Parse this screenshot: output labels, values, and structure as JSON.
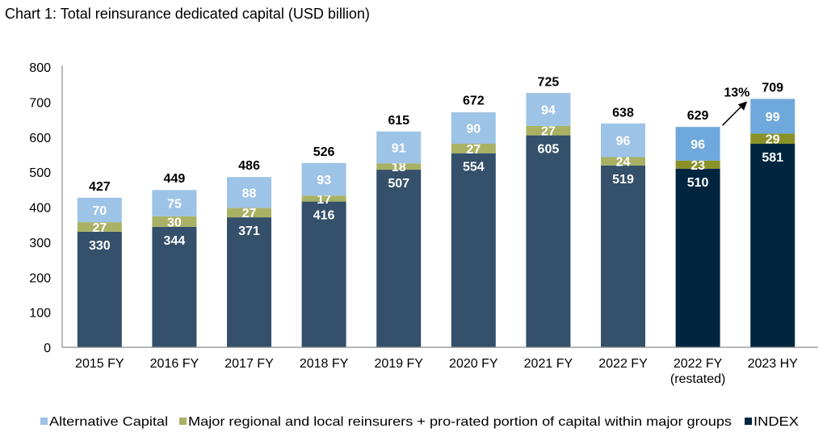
{
  "chart_data": {
    "type": "bar",
    "stacked": true,
    "title": "Chart 1: Total reinsurance dedicated capital (USD billion)",
    "categories": [
      "2015 FY",
      "2016 FY",
      "2017 FY",
      "2018 FY",
      "2019 FY",
      "2020 FY",
      "2021 FY",
      "2022 FY",
      "2022 FY\n(restated)",
      "2023 HY"
    ],
    "category_lines": [
      [
        "2015 FY"
      ],
      [
        "2016 FY"
      ],
      [
        "2017 FY"
      ],
      [
        "2018 FY"
      ],
      [
        "2019 FY"
      ],
      [
        "2020 FY"
      ],
      [
        "2021 FY"
      ],
      [
        "2022 FY"
      ],
      [
        "2022 FY",
        "(restated)"
      ],
      [
        "2023 HY"
      ]
    ],
    "series": [
      {
        "name": "INDEX",
        "values": [
          330,
          344,
          371,
          416,
          507,
          554,
          605,
          519,
          510,
          581
        ],
        "color": "#34506a",
        "highlight_color": "#00263f"
      },
      {
        "name": "Major regional and local reinsurers + pro-rated portion of capital within major groups",
        "values": [
          27,
          30,
          27,
          17,
          18,
          27,
          27,
          24,
          23,
          29
        ],
        "color": "#a9b264",
        "highlight_color": "#8a9128"
      },
      {
        "name": "Alternative Capital",
        "values": [
          70,
          75,
          88,
          93,
          91,
          90,
          94,
          96,
          96,
          99
        ],
        "color": "#9dc3e6",
        "highlight_color": "#6fa8dc"
      }
    ],
    "totals": [
      427,
      449,
      486,
      526,
      615,
      672,
      725,
      638,
      629,
      709
    ],
    "highlighted_categories": [
      "2022 FY\n(restated)",
      "2023 HY"
    ],
    "annotation": {
      "text": "13%",
      "from": "2022 FY\n(restated)",
      "to": "2023 HY"
    },
    "legend_order": [
      "Alternative Capital",
      "Major regional and local reinsurers + pro-rated portion of capital within major groups",
      "INDEX"
    ],
    "legend_position": "bottom",
    "ylim": [
      0,
      800
    ],
    "yticks": [
      0,
      100,
      200,
      300,
      400,
      500,
      600,
      700,
      800
    ],
    "grid": false,
    "xlabel": "",
    "ylabel": ""
  }
}
